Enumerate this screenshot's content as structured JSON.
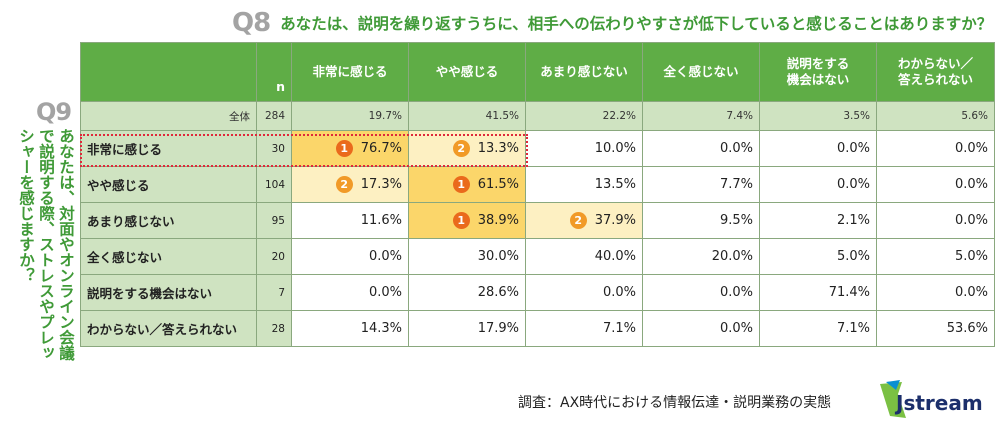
{
  "q8": {
    "num": "Q8",
    "text": "あなたは、説明を繰り返すうちに、相手への伝わりやすさが低下していると感じることはありますか？"
  },
  "q9": {
    "num": "Q9",
    "text": "あなたは、対面やオンライン会議で説明する際、ストレスやプレッシャーを感じますか？"
  },
  "source": "調査：AX時代における情報伝達・説明業務の実態",
  "logo_text": "Jstream",
  "colors": {
    "header_green": "#5fad46",
    "light_green": "#cfe3c1",
    "rank1": "#fbd66a",
    "rank2": "#fdf0c2",
    "badge1": "#ea6a1c",
    "badge2": "#f19a27",
    "highlight": "#e0283a"
  },
  "chart_data": {
    "type": "table",
    "n_header": "n",
    "columns": [
      "非常に感じる",
      "やや感じる",
      "あまり感じない",
      "全く感じない",
      "説明をする\n機会はない",
      "わからない／\n答えられない"
    ],
    "total": {
      "label": "全体",
      "n": "284",
      "values": [
        "19.7%",
        "41.5%",
        "22.2%",
        "7.4%",
        "3.5%",
        "5.6%"
      ]
    },
    "rows": [
      {
        "label": "非常に感じる",
        "n": "30",
        "values": [
          "76.7%",
          "13.3%",
          "10.0%",
          "0.0%",
          "0.0%",
          "0.0%"
        ],
        "ranks": [
          "1",
          "2",
          "",
          "",
          "",
          ""
        ]
      },
      {
        "label": "やや感じる",
        "n": "104",
        "values": [
          "17.3%",
          "61.5%",
          "13.5%",
          "7.7%",
          "0.0%",
          "0.0%"
        ],
        "ranks": [
          "2",
          "1",
          "",
          "",
          "",
          ""
        ]
      },
      {
        "label": "あまり感じない",
        "n": "95",
        "values": [
          "11.6%",
          "38.9%",
          "37.9%",
          "9.5%",
          "2.1%",
          "0.0%"
        ],
        "ranks": [
          "",
          "1",
          "2",
          "",
          "",
          ""
        ]
      },
      {
        "label": "全く感じない",
        "n": "20",
        "values": [
          "0.0%",
          "30.0%",
          "40.0%",
          "20.0%",
          "5.0%",
          "5.0%"
        ],
        "ranks": [
          "",
          "",
          "",
          "",
          "",
          ""
        ]
      },
      {
        "label": "説明をする機会はない",
        "n": "7",
        "values": [
          "0.0%",
          "28.6%",
          "0.0%",
          "0.0%",
          "71.4%",
          "0.0%"
        ],
        "ranks": [
          "",
          "",
          "",
          "",
          "",
          ""
        ]
      },
      {
        "label": "わからない／答えられない",
        "n": "28",
        "values": [
          "14.3%",
          "17.9%",
          "7.1%",
          "0.0%",
          "7.1%",
          "53.6%"
        ],
        "ranks": [
          "",
          "",
          "",
          "",
          "",
          ""
        ]
      }
    ]
  }
}
